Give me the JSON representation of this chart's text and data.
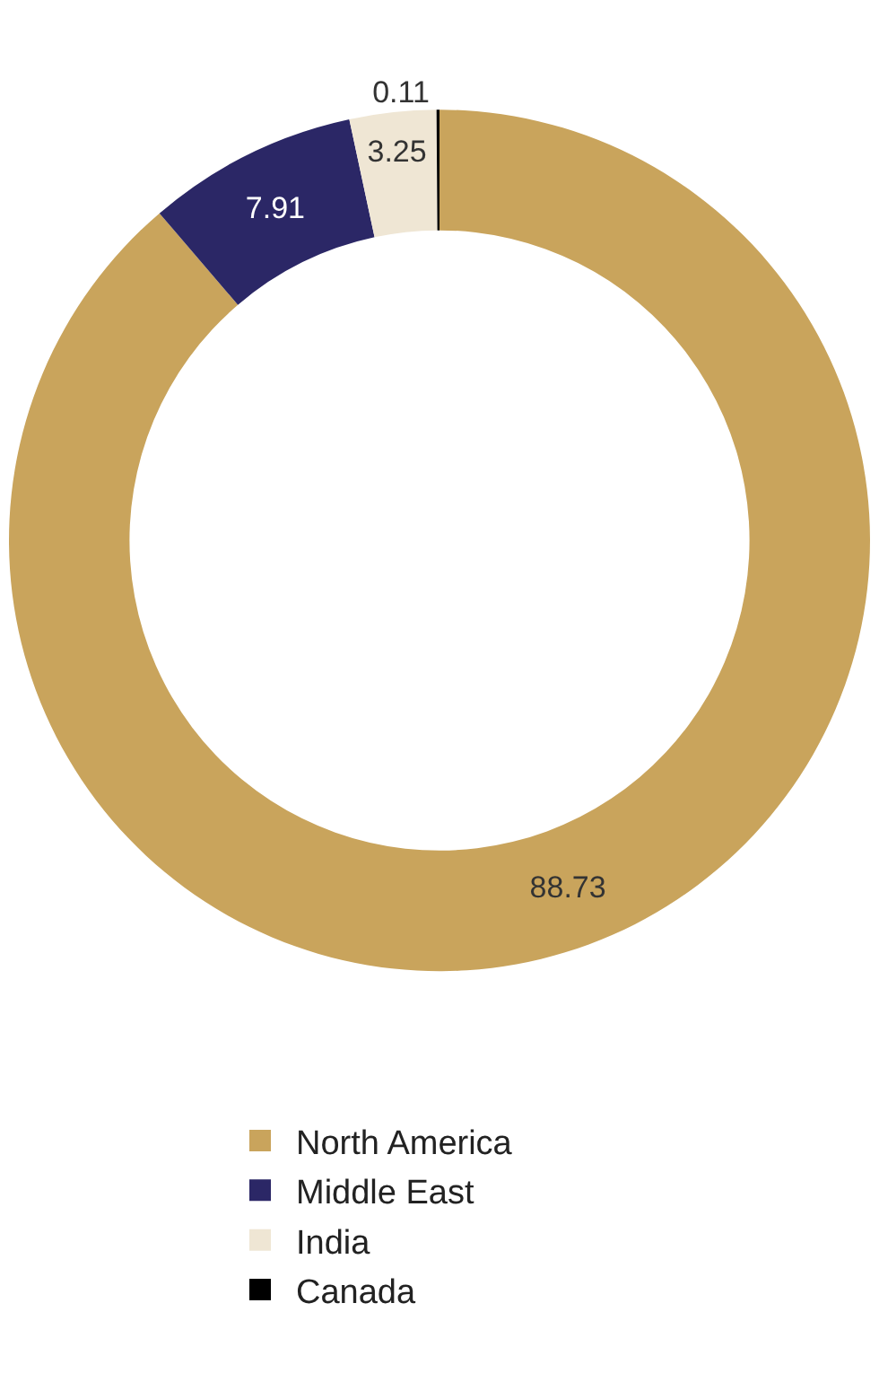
{
  "chart_data": {
    "type": "donut",
    "categories": [
      "North America",
      "Middle East",
      "India",
      "Canada"
    ],
    "values": [
      88.73,
      7.91,
      3.25,
      0.11
    ],
    "colors": [
      "#c9a45c",
      "#2b2766",
      "#efe6d4",
      "#000000"
    ],
    "data_labels": true,
    "legend": "bottom"
  }
}
